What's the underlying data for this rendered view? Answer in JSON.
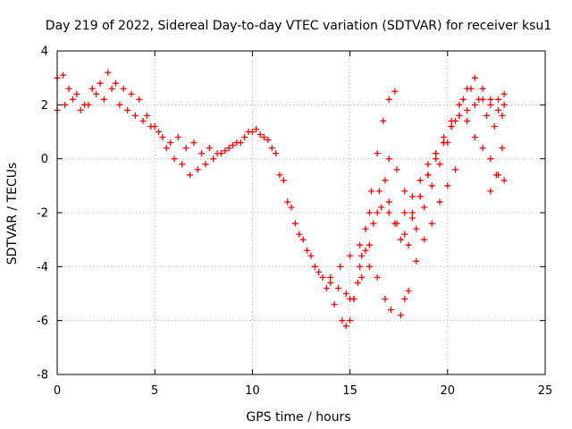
{
  "chart_data": {
    "type": "scatter",
    "title": "Day 219 of 2022, Sidereal Day-to-day VTEC variation (SDTVAR) for receiver ksu1",
    "xlabel": "GPS time / hours",
    "ylabel": "SDTVAR / TECUs",
    "xlim": [
      0,
      25
    ],
    "ylim": [
      -8,
      4
    ],
    "xticks": [
      "0",
      "5",
      "10",
      "15",
      "20",
      "25"
    ],
    "yticks": [
      "-8",
      "-6",
      "-4",
      "-2",
      "0",
      "2",
      "4"
    ],
    "grid": true,
    "marker": "+",
    "color": "#ff0000",
    "series": [
      {
        "x": [
          0.0,
          0.3,
          0.6,
          1.0,
          1.4,
          1.8,
          2.2,
          2.6,
          3.0,
          3.4,
          3.8,
          4.2,
          4.6,
          5.0,
          5.4,
          5.8,
          6.2,
          6.6,
          7.0,
          7.4,
          7.8,
          8.2,
          8.6,
          9.0,
          9.4,
          9.8,
          10.2,
          10.6,
          11.0,
          11.4,
          11.8,
          12.2,
          12.6,
          13.0,
          13.4,
          13.8,
          14.2,
          14.6,
          14.8,
          15.0,
          15.2,
          15.5,
          15.8,
          16.1,
          16.4,
          16.7,
          17.0,
          17.3
        ],
        "y": [
          3.0,
          3.1,
          2.6,
          2.4,
          2.0,
          2.6,
          2.8,
          3.2,
          2.8,
          2.6,
          2.4,
          2.2,
          1.6,
          1.2,
          0.8,
          0.6,
          0.8,
          0.4,
          0.6,
          0.2,
          0.4,
          0.2,
          0.3,
          0.5,
          0.6,
          1.0,
          1.1,
          0.8,
          0.4,
          -0.6,
          -1.6,
          -2.4,
          -3.0,
          -3.6,
          -4.2,
          -4.8,
          -5.4,
          -6.0,
          -6.2,
          -6.0,
          -5.2,
          -4.0,
          -2.6,
          -1.2,
          0.2,
          1.4,
          2.2,
          2.5
        ]
      },
      {
        "x": [
          0.0,
          0.4,
          0.8,
          1.2,
          1.6,
          2.0,
          2.4,
          2.8,
          3.2,
          3.6,
          4.0,
          4.4,
          4.8,
          5.2,
          5.6,
          6.0,
          6.4,
          6.8,
          7.2,
          7.6,
          8.0,
          8.4,
          8.8,
          9.2,
          9.6,
          10.0,
          10.4,
          10.8,
          11.2,
          11.6,
          12.0,
          12.4,
          12.8,
          13.2,
          13.6,
          14.0,
          14.4,
          14.8,
          15.2,
          15.6,
          16.0,
          16.4,
          16.8,
          17.0,
          17.4,
          17.8,
          18.2,
          18.6,
          19.0,
          19.4,
          19.8,
          20.2,
          20.6,
          21.0,
          21.4,
          21.8,
          22.2,
          22.6,
          22.9
        ],
        "y": [
          1.8,
          2.0,
          2.2,
          1.8,
          2.0,
          2.4,
          2.2,
          2.6,
          2.0,
          1.8,
          1.6,
          1.4,
          1.2,
          1.0,
          0.4,
          0.0,
          -0.2,
          -0.6,
          -0.4,
          -0.2,
          0.0,
          0.2,
          0.4,
          0.6,
          0.8,
          1.0,
          0.9,
          0.7,
          0.2,
          -0.8,
          -1.8,
          -2.8,
          -3.4,
          -4.0,
          -4.4,
          -4.6,
          -4.8,
          -5.0,
          -5.2,
          -4.4,
          -3.2,
          -2.0,
          -0.8,
          0.0,
          -0.4,
          -1.2,
          -2.0,
          -1.4,
          -0.6,
          0.2,
          0.8,
          1.4,
          1.6,
          1.8,
          2.0,
          2.2,
          2.0,
          1.8,
          2.0
        ]
      },
      {
        "x": [
          14.0,
          14.5,
          15.0,
          15.5,
          16.0,
          16.5,
          17.0,
          17.3,
          17.6,
          18.0,
          18.4,
          18.8,
          19.2,
          19.6,
          20.0,
          20.4,
          20.8,
          21.2,
          21.6,
          22.0,
          22.4,
          22.8
        ],
        "y": [
          -4.4,
          -4.0,
          -3.6,
          -3.2,
          -2.0,
          -1.2,
          -1.6,
          -2.4,
          -3.0,
          -3.2,
          -2.6,
          -1.8,
          -1.0,
          -0.2,
          0.6,
          1.4,
          2.2,
          2.6,
          2.2,
          1.6,
          1.2,
          1.6
        ]
      },
      {
        "x": [
          15.0,
          15.4,
          15.8,
          16.2,
          16.6,
          17.0,
          17.4,
          17.8,
          18.2,
          18.6,
          19.0,
          19.4,
          19.8,
          20.2,
          20.6,
          21.0,
          21.4,
          21.8,
          22.2,
          22.6,
          22.9
        ],
        "y": [
          -5.2,
          -4.6,
          -3.4,
          -2.4,
          -1.8,
          -2.0,
          -2.4,
          -2.8,
          -2.2,
          -1.4,
          -0.6,
          0.0,
          0.6,
          1.2,
          2.0,
          2.6,
          3.0,
          2.6,
          2.2,
          2.2,
          2.4
        ]
      },
      {
        "x": [
          15.6,
          16.0,
          16.4,
          16.8,
          17.1
        ],
        "y": [
          -3.6,
          -4.0,
          -4.4,
          -5.2,
          -5.6
        ]
      },
      {
        "x": [
          17.6,
          17.8,
          18.0
        ],
        "y": [
          -5.8,
          -5.2,
          -4.9
        ]
      },
      {
        "x": [
          17.8,
          18.2,
          18.6,
          19.0,
          19.4,
          19.8,
          20.2,
          20.6,
          21.0,
          21.4,
          21.8,
          22.2,
          22.6,
          22.9
        ],
        "y": [
          -2.0,
          -1.4,
          -0.8,
          -0.2,
          0.2,
          0.6,
          1.2,
          1.6,
          1.4,
          0.8,
          0.4,
          0.0,
          -0.6,
          -0.8
        ]
      },
      {
        "x": [
          18.4,
          18.8,
          19.2,
          19.6,
          20.0,
          20.4
        ],
        "y": [
          -3.8,
          -3.0,
          -2.4,
          -1.6,
          -1.0,
          -0.4
        ]
      },
      {
        "x": [
          22.2,
          22.5,
          22.8
        ],
        "y": [
          -1.2,
          -0.6,
          0.4
        ]
      }
    ]
  }
}
